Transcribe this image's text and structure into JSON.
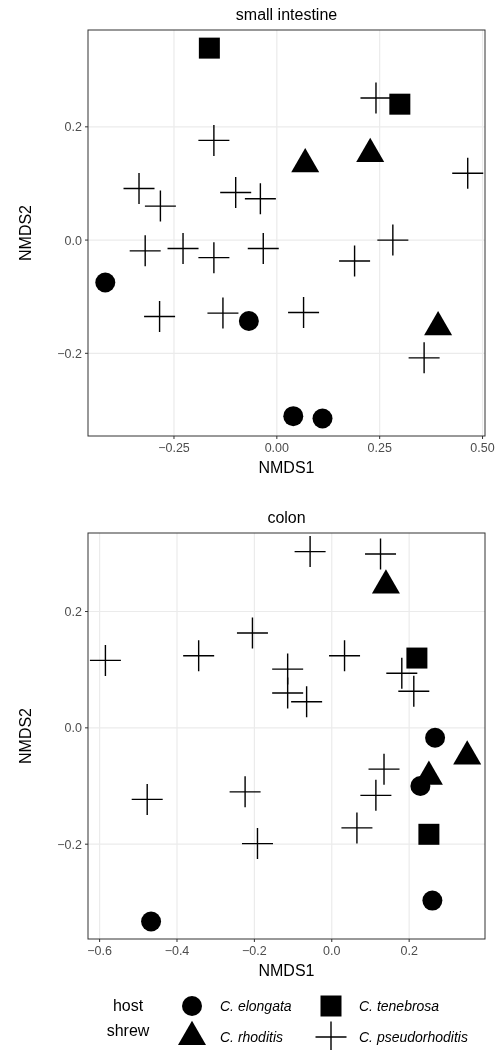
{
  "chart_data": [
    {
      "type": "scatter",
      "title": "small intestine",
      "xlabel": "NMDS1",
      "ylabel": "NMDS2",
      "xlim": [
        -0.459,
        0.506
      ],
      "ylim": [
        -0.346,
        0.371
      ],
      "xticks": [
        {
          "value": -0.25,
          "label": "−0.25"
        },
        {
          "value": 0,
          "label": "0.00"
        },
        {
          "value": 0.25,
          "label": "0.25"
        },
        {
          "value": 0.5,
          "label": "0.50"
        }
      ],
      "yticks": [
        {
          "value": -0.2,
          "label": "−0.2"
        },
        {
          "value": 0,
          "label": "0.0"
        },
        {
          "value": 0.2,
          "label": "0.2"
        }
      ],
      "grid": true,
      "legend": false,
      "series": [
        {
          "color": "#000000",
          "marker": "circle",
          "x": [
            -0.417,
            -0.068,
            0.04,
            0.111
          ],
          "values": [
            -0.075,
            -0.143,
            -0.311,
            -0.315
          ]
        },
        {
          "color": "#000000",
          "marker": "triangle",
          "x": [
            0.069,
            0.227,
            0.392
          ],
          "values": [
            0.134,
            0.152,
            -0.154
          ]
        },
        {
          "color": "#000000",
          "marker": "square",
          "x": [
            -0.164,
            0.299
          ],
          "values": [
            0.339,
            0.24
          ]
        },
        {
          "color": "#000000",
          "marker": "cross",
          "x": [
            0.241,
            -0.153,
            0.464,
            -0.335,
            -0.283,
            -0.1,
            -0.04,
            -0.32,
            -0.228,
            -0.153,
            -0.033,
            0.282,
            0.189,
            -0.285,
            -0.131,
            0.065,
            0.358
          ],
          "values": [
            0.251,
            0.176,
            0.118,
            0.091,
            0.06,
            0.084,
            0.073,
            -0.019,
            -0.015,
            -0.031,
            -0.015,
            0,
            -0.037,
            -0.135,
            -0.129,
            -0.128,
            -0.208
          ]
        }
      ]
    },
    {
      "type": "scatter",
      "title": "colon",
      "xlabel": "NMDS1",
      "ylabel": "NMDS2",
      "legend_title": "host shrew",
      "xlim": [
        -0.63,
        0.396
      ],
      "ylim": [
        -0.363,
        0.335
      ],
      "xticks": [
        {
          "value": -0.6,
          "label": "−0.6"
        },
        {
          "value": -0.4,
          "label": "−0.4"
        },
        {
          "value": -0.2,
          "label": "−0.2"
        },
        {
          "value": 0,
          "label": "0.0"
        },
        {
          "value": 0.2,
          "label": "0.2"
        }
      ],
      "yticks": [
        {
          "value": -0.2,
          "label": "−0.2"
        },
        {
          "value": 0,
          "label": "0.0"
        },
        {
          "value": 0.2,
          "label": "0.2"
        }
      ],
      "grid": true,
      "legend": "bottom",
      "series": [
        {
          "name": "C. elongata",
          "color": "#000000",
          "marker": "circle",
          "x": [
            0.267,
            0.229,
            0.26,
            -0.467
          ],
          "values": [
            -0.017,
            -0.1,
            -0.297,
            -0.333
          ]
        },
        {
          "name": "C. rhoditis",
          "color": "#000000",
          "marker": "triangle",
          "x": [
            0.14,
            0.35,
            0.251
          ],
          "values": [
            0.245,
            -0.049,
            -0.084
          ]
        },
        {
          "name": "C. tenebrosa",
          "color": "#000000",
          "marker": "square",
          "x": [
            0.22,
            0.251
          ],
          "values": [
            0.12,
            -0.183
          ]
        },
        {
          "name": "C. pseudorhoditis",
          "color": "#000000",
          "marker": "cross",
          "x": [
            -0.056,
            0.126,
            -0.205,
            -0.585,
            -0.344,
            0.033,
            -0.114,
            0.181,
            -0.114,
            -0.065,
            0.212,
            0.135,
            0.114,
            0.065,
            -0.224,
            -0.192,
            -0.477
          ],
          "values": [
            0.303,
            0.299,
            0.163,
            0.116,
            0.124,
            0.124,
            0.101,
            0.094,
            0.06,
            0.045,
            0.063,
            -0.071,
            -0.116,
            -0.172,
            -0.11,
            -0.199,
            -0.123
          ]
        }
      ]
    }
  ]
}
